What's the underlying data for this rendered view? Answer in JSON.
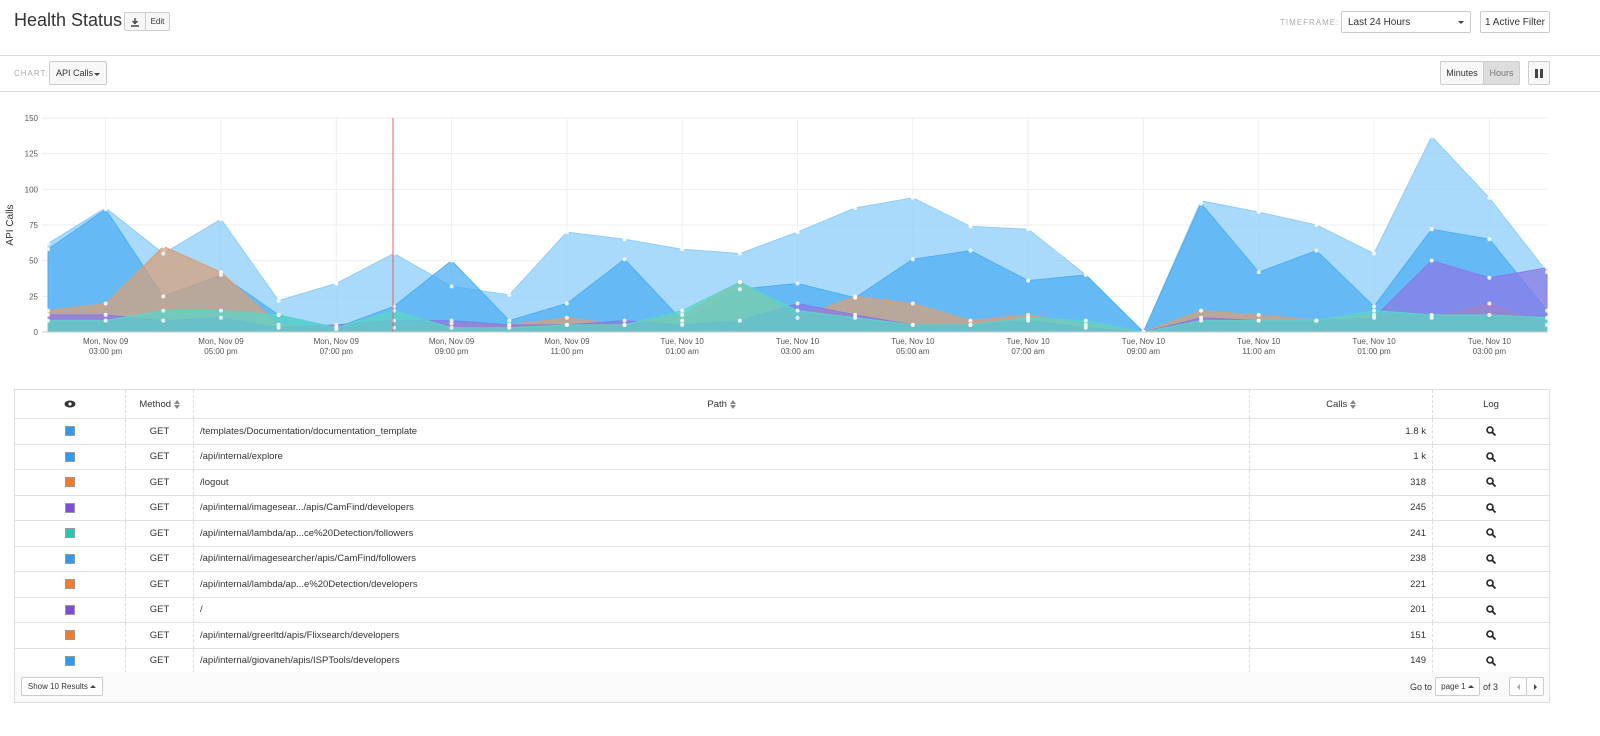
{
  "header": {
    "title": "Health Status",
    "edit_button": "Edit",
    "timeframe_label": "TIMEFRAME:",
    "timeframe": "Last 24 Hours",
    "filter_button": "1 Active Filter"
  },
  "toolbar": {
    "chart_label": "CHART:",
    "chart_select": "API Calls",
    "buttons": [
      "Minutes",
      "Hours"
    ]
  },
  "chart": {
    "type": "area",
    "y_label": "API Calls",
    "ylim": [
      0,
      150
    ],
    "yticks": [
      0,
      25,
      50,
      75,
      100,
      125,
      150
    ],
    "grid": true,
    "categories": [
      null,
      [
        "Mon, Nov 09",
        "03:00 pm"
      ],
      null,
      [
        "Mon, Nov 09",
        "05:00 pm"
      ],
      null,
      [
        "Mon, Nov 09",
        "07:00 pm"
      ],
      null,
      [
        "Mon, Nov 09",
        "09:00 pm"
      ],
      null,
      [
        "Mon, Nov 09",
        "11:00 pm"
      ],
      null,
      [
        "Tue, Nov 10",
        "01:00 am"
      ],
      null,
      [
        "Tue, Nov 10",
        "03:00 am"
      ],
      null,
      [
        "Tue, Nov 10",
        "05:00 am"
      ],
      null,
      [
        "Tue, Nov 10",
        "07:00 am"
      ],
      null,
      [
        "Tue, Nov 10",
        "09:00 am"
      ],
      null,
      [
        "Tue, Nov 10",
        "11:00 am"
      ],
      null,
      [
        "Tue, Nov 10",
        "01:00 pm"
      ],
      null,
      [
        "Tue, Nov 10",
        "03:00 pm"
      ],
      null
    ],
    "series": [
      {
        "color": "#8ecdf9",
        "values": [
          62,
          87,
          55,
          79,
          22,
          34,
          55,
          32,
          26,
          70,
          65,
          58,
          55,
          70,
          87,
          94,
          74,
          72,
          40,
          0,
          92,
          84,
          75,
          55,
          137,
          94,
          42
        ]
      },
      {
        "color": "#4dafF4",
        "values": [
          58,
          86,
          25,
          40,
          12,
          3,
          18,
          50,
          8,
          20,
          51,
          8,
          30,
          34,
          24,
          51,
          57,
          36,
          40,
          0,
          90,
          42,
          57,
          18,
          72,
          65,
          15
        ]
      },
      {
        "color": "#d4a07c",
        "values": [
          15,
          20,
          60,
          42,
          5,
          2,
          3,
          6,
          5,
          10,
          5,
          12,
          35,
          10,
          25,
          20,
          8,
          12,
          5,
          0,
          15,
          12,
          8,
          12,
          10,
          20,
          5
        ]
      },
      {
        "color": "#8a7ae6",
        "values": [
          12,
          12,
          8,
          10,
          3,
          5,
          8,
          8,
          5,
          5,
          8,
          5,
          8,
          20,
          12,
          5,
          5,
          8,
          3,
          0,
          10,
          8,
          8,
          10,
          50,
          38,
          45
        ]
      },
      {
        "color": "#5cd4c6",
        "values": [
          8,
          8,
          15,
          15,
          12,
          3,
          15,
          3,
          3,
          5,
          5,
          15,
          35,
          15,
          10,
          5,
          5,
          10,
          8,
          0,
          8,
          8,
          8,
          15,
          12,
          12,
          10
        ]
      }
    ]
  },
  "table": {
    "columns": [
      "Method",
      "Path",
      "Calls",
      "Log"
    ],
    "rows": [
      {
        "color": "#2d9bf0",
        "method": "GET",
        "path": "/templates/Documentation/documentation_template",
        "calls": "1.8 k"
      },
      {
        "color": "#2d9bf0",
        "method": "GET",
        "path": "/api/internal/explore",
        "calls": "1 k"
      },
      {
        "color": "#f07b2a",
        "method": "GET",
        "path": "/logout",
        "calls": "318"
      },
      {
        "color": "#7c4ddb",
        "method": "GET",
        "path": "/api/internal/imagesear.../apis/CamFind/developers",
        "calls": "245"
      },
      {
        "color": "#26c6b0",
        "method": "GET",
        "path": "/api/internal/lambda/ap...ce%20Detection/followers",
        "calls": "241"
      },
      {
        "color": "#2d9bf0",
        "method": "GET",
        "path": "/api/internal/imagesearcher/apis/CamFind/followers",
        "calls": "238"
      },
      {
        "color": "#f07b2a",
        "method": "GET",
        "path": "/api/internal/lambda/ap...e%20Detection/developers",
        "calls": "221"
      },
      {
        "color": "#7c4ddb",
        "method": "GET",
        "path": "/",
        "calls": "201"
      },
      {
        "color": "#f07b2a",
        "method": "GET",
        "path": "/api/internal/greerltd/apis/Flixsearch/developers",
        "calls": "151"
      },
      {
        "color": "#2d9bf0",
        "method": "GET",
        "path": "/api/internal/giovaneh/apis/ISPTools/developers",
        "calls": "149"
      }
    ]
  },
  "footer": {
    "show_results": "Show 10 Results",
    "goto_label": "Go to",
    "page": "page 1",
    "of_pages": "of 3"
  }
}
